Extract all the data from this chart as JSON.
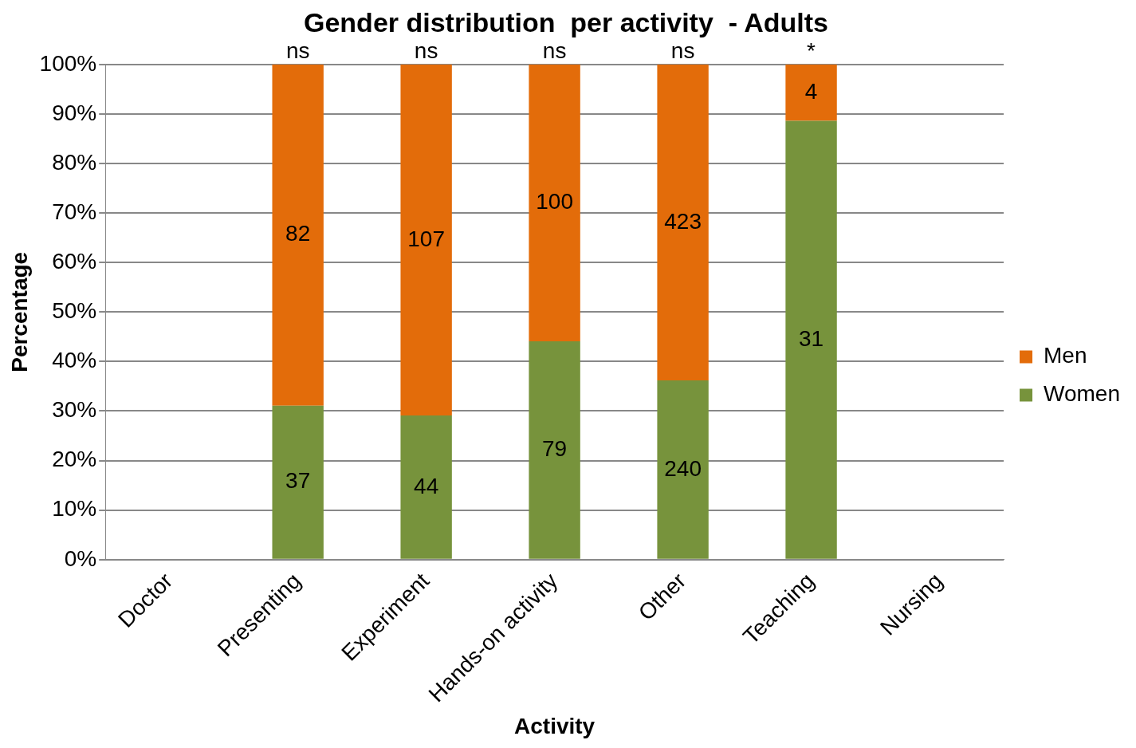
{
  "chart_data": {
    "type": "bar",
    "title": "Gender distribution  per activity  - Adults",
    "xlabel": "Activity",
    "ylabel": "Percentage",
    "stacked": true,
    "legend": "right",
    "grid": "y",
    "categories": [
      "Doctor",
      "Presenting",
      "Experiment",
      "Hands-on activity",
      "Other",
      "Teaching",
      "Nursing"
    ],
    "series": [
      {
        "name": "Women",
        "color": "#77933c",
        "values": [
          null,
          31.1,
          29.1,
          44.1,
          36.2,
          88.6,
          null
        ]
      },
      {
        "name": "Men",
        "color": "#e36c0a",
        "values": [
          null,
          68.9,
          70.9,
          55.9,
          63.8,
          11.4,
          null
        ]
      }
    ],
    "ylim": [
      0,
      100
    ],
    "yticks": [
      {
        "value": 0,
        "label": "0%"
      },
      {
        "value": 10,
        "label": "10%"
      },
      {
        "value": 20,
        "label": "20%"
      },
      {
        "value": 30,
        "label": "30%"
      },
      {
        "value": 40,
        "label": "40%"
      },
      {
        "value": 50,
        "label": "50%"
      },
      {
        "value": 60,
        "label": "60%"
      },
      {
        "value": 70,
        "label": "70%"
      },
      {
        "value": 80,
        "label": "80%"
      },
      {
        "value": 90,
        "label": "90%"
      },
      {
        "value": 100,
        "label": "100%"
      }
    ],
    "annotations": [
      "37",
      "44",
      "79",
      "240",
      "31",
      "82",
      "107",
      "100",
      "423",
      "4",
      {
        "text": "ns",
        "x": "Presenting",
        "y": 100
      },
      {
        "text": "ns",
        "x": "Experiment",
        "y": 100
      },
      {
        "text": "ns",
        "x": "Hands-on activity",
        "y": 100
      },
      {
        "text": "ns",
        "x": "Other",
        "y": 100
      },
      {
        "text": "*",
        "x": "Teaching",
        "y": 100
      }
    ]
  }
}
